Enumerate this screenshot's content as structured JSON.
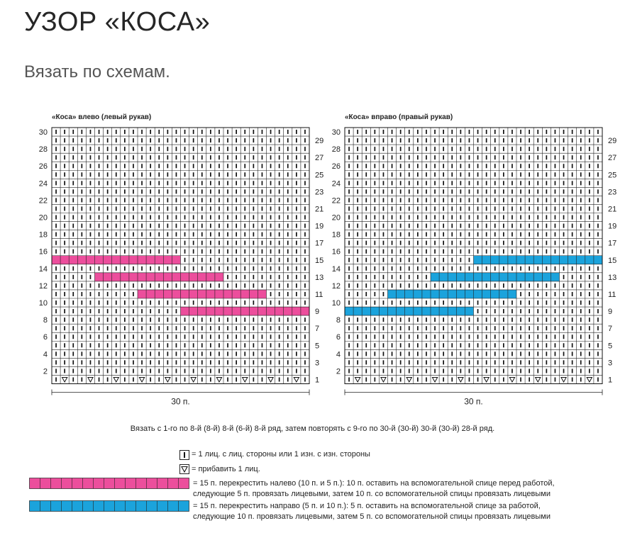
{
  "page": {
    "title": "УЗОР «КОСА»",
    "subtitle": "Вязать по схемам."
  },
  "charts": [
    {
      "id": "left",
      "caption": "«Коса» влево (левый рукав)",
      "width_label": "30 п.",
      "columns": 30,
      "rows": 30,
      "cable_color": "#ec4e9c",
      "cables": [
        {
          "row": 9,
          "from_col": 16,
          "to_col": 30
        },
        {
          "row": 11,
          "from_col": 11,
          "to_col": 25
        },
        {
          "row": 13,
          "from_col": 6,
          "to_col": 20
        },
        {
          "row": 15,
          "from_col": 1,
          "to_col": 15
        }
      ],
      "left_row_labels": [
        "30",
        "28",
        "26",
        "24",
        "22",
        "20",
        "18",
        "16",
        "14",
        "12",
        "10",
        "8",
        "6",
        "4",
        "2"
      ],
      "right_row_labels": [
        "29",
        "27",
        "25",
        "23",
        "21",
        "19",
        "17",
        "15",
        "13",
        "11",
        "9",
        "7",
        "5",
        "3",
        "1"
      ]
    },
    {
      "id": "right",
      "caption": "«Коса» вправо (правый рукав)",
      "width_label": "30 п.",
      "columns": 30,
      "rows": 30,
      "cable_color": "#1ba3dc",
      "cables": [
        {
          "row": 9,
          "from_col": 1,
          "to_col": 15
        },
        {
          "row": 11,
          "from_col": 6,
          "to_col": 20
        },
        {
          "row": 13,
          "from_col": 11,
          "to_col": 25
        },
        {
          "row": 15,
          "from_col": 16,
          "to_col": 30
        }
      ],
      "left_row_labels": [
        "30",
        "28",
        "26",
        "24",
        "22",
        "20",
        "18",
        "16",
        "14",
        "12",
        "10",
        "8",
        "6",
        "4",
        "2"
      ],
      "right_row_labels": [
        "29",
        "27",
        "25",
        "23",
        "21",
        "19",
        "17",
        "15",
        "13",
        "11",
        "9",
        "7",
        "5",
        "3",
        "1"
      ]
    }
  ],
  "increase_columns": [
    2,
    5,
    8,
    11,
    14,
    17,
    20,
    23,
    26,
    29
  ],
  "instruction": "Вязать с 1-го по 8-й (8-й) 8-й (6-й) 8-й ряд, затем повторять с 9-го по 30-й (30-й) 30-й (30-й) 28-й ряд.",
  "legend": {
    "knit": "= 1 лиц. с лиц. стороны или 1 изн. с изн. стороны",
    "increase": "= прибавить 1 лиц.",
    "pink_line1": "=  15 п. перекрестить налево (10 п. и 5 п.): 10 п. оставить на вспомогательной спице перед работой,",
    "pink_line2": "следующие 5 п. провязать лицевыми, затем 10 п. со вспомогательной спицы провязать лицевыми",
    "blue_line1": "= 15 п. перекрестить направо (5 п. и 10 п.): 5 п. оставить на вспомогательной спице за работой,",
    "blue_line2": "следующие 10 п. провязать лицевыми, затем 5 п. со вспомогательной спицы провязать лицевыми",
    "pink_color": "#ec4e9c",
    "blue_color": "#1ba3dc"
  }
}
